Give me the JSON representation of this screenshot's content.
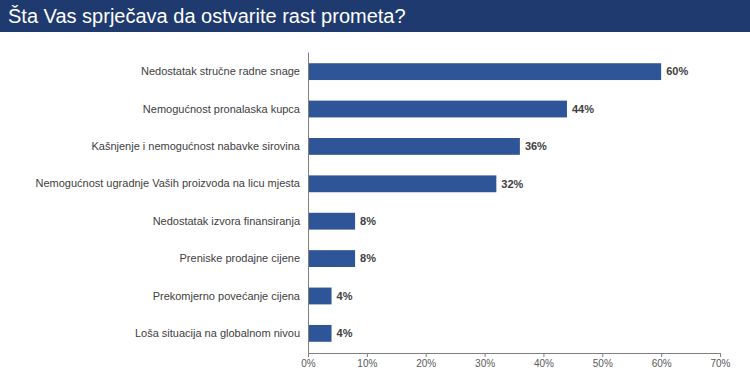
{
  "chart_data": {
    "type": "bar",
    "orientation": "horizontal",
    "title": "Šta Vas sprječava da ostvarite rast prometa?",
    "categories": [
      "Nedostatak stručne radne snage",
      "Nemogućnost pronalaska kupca",
      "Kašnjenje i nemogućnost nabavke sirovina",
      "Nemogućnost ugradnje Vaših proizvoda na licu mjesta",
      "Nedostatak izvora finansiranja",
      "Preniske prodajne cijene",
      "Prekomjerno povećanje cijena",
      "Loša situacija na globalnom nivou"
    ],
    "values": [
      60,
      44,
      36,
      32,
      8,
      8,
      4,
      4
    ],
    "value_labels": [
      "60%",
      "44%",
      "36%",
      "32%",
      "8%",
      "8%",
      "4%",
      "4%"
    ],
    "color": "#2e5597",
    "data_labels": true,
    "grid": false,
    "xlim": [
      0,
      70
    ],
    "xticks": [
      {
        "value": 0,
        "label": "0%"
      },
      {
        "value": 10,
        "label": "10%"
      },
      {
        "value": 20,
        "label": "20%"
      },
      {
        "value": 30,
        "label": "30%"
      },
      {
        "value": 40,
        "label": "40%"
      },
      {
        "value": 50,
        "label": "50%"
      },
      {
        "value": 60,
        "label": "60%"
      },
      {
        "value": 70,
        "label": "70%"
      }
    ]
  }
}
